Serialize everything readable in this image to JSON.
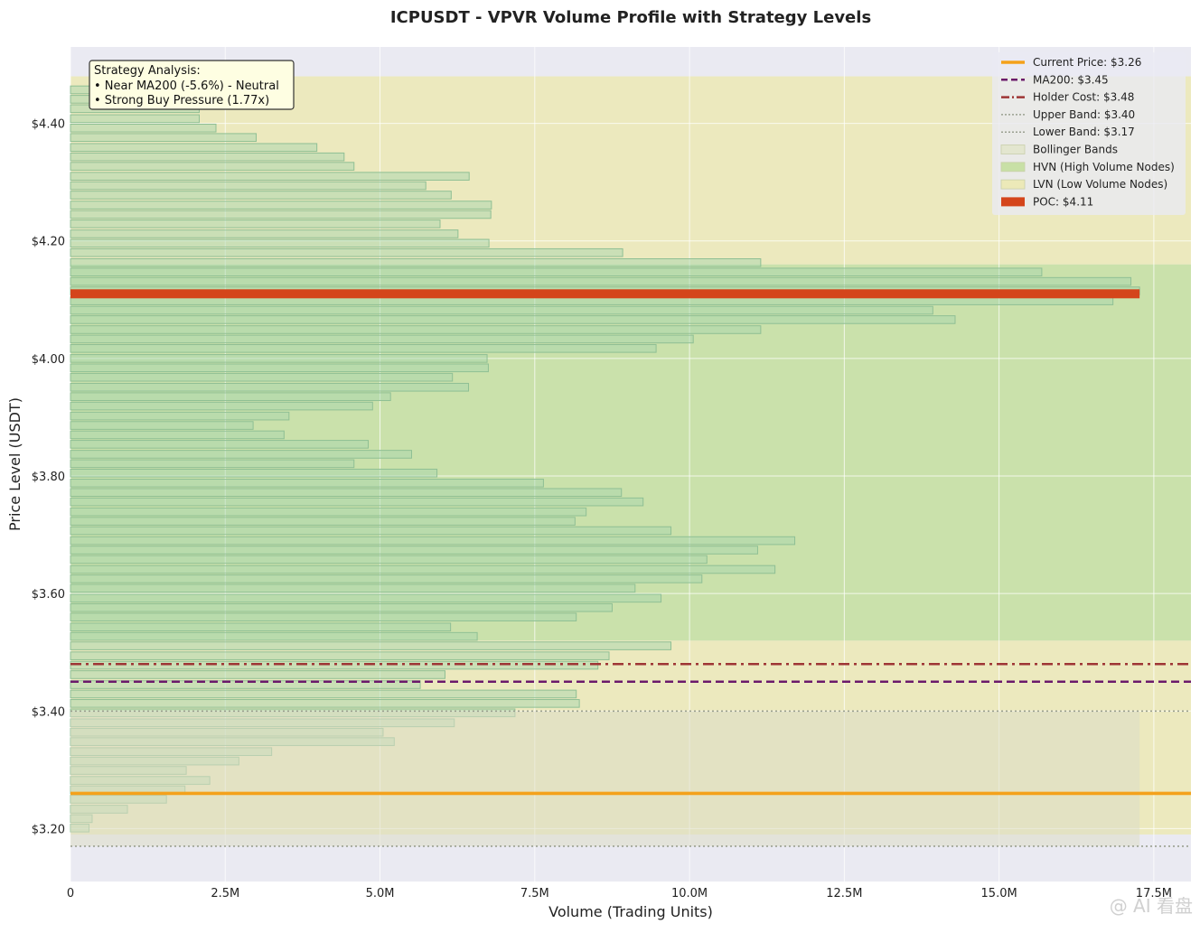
{
  "chart_data": {
    "type": "bar",
    "orientation": "horizontal",
    "title": "ICPUSDT - VPVR Volume Profile with Strategy Levels",
    "xlabel": "Volume (Trading Units)",
    "ylabel": "Price Level (USDT)",
    "xlim": [
      0,
      18100000
    ],
    "ylim": [
      3.11,
      4.53
    ],
    "x_ticks": [
      {
        "value": 0,
        "label": "0"
      },
      {
        "value": 2500000,
        "label": "2.5M"
      },
      {
        "value": 5000000,
        "label": "5.0M"
      },
      {
        "value": 7500000,
        "label": "7.5M"
      },
      {
        "value": 10000000,
        "label": "10.0M"
      },
      {
        "value": 12500000,
        "label": "12.5M"
      },
      {
        "value": 15000000,
        "label": "15.0M"
      },
      {
        "value": 17500000,
        "label": "17.5M"
      }
    ],
    "y_ticks": [
      {
        "value": 3.2,
        "label": "$3.20"
      },
      {
        "value": 3.4,
        "label": "$3.40"
      },
      {
        "value": 3.6,
        "label": "$3.60"
      },
      {
        "value": 3.8,
        "label": "$3.80"
      },
      {
        "value": 4.0,
        "label": "$4.00"
      },
      {
        "value": 4.2,
        "label": "$4.20"
      },
      {
        "value": 4.4,
        "label": "$4.40"
      }
    ],
    "grid": true,
    "bin_height": 0.0163,
    "bins": [
      {
        "price": 3.201,
        "volume": 300000
      },
      {
        "price": 3.217,
        "volume": 350000
      },
      {
        "price": 3.233,
        "volume": 920000
      },
      {
        "price": 3.25,
        "volume": 1550000
      },
      {
        "price": 3.266,
        "volume": 1850000
      },
      {
        "price": 3.282,
        "volume": 2250000
      },
      {
        "price": 3.299,
        "volume": 1870000
      },
      {
        "price": 3.315,
        "volume": 2720000
      },
      {
        "price": 3.331,
        "volume": 3250000
      },
      {
        "price": 3.348,
        "volume": 5230000
      },
      {
        "price": 3.364,
        "volume": 5050000
      },
      {
        "price": 3.38,
        "volume": 6200000
      },
      {
        "price": 3.397,
        "volume": 7180000
      },
      {
        "price": 3.413,
        "volume": 8220000
      },
      {
        "price": 3.429,
        "volume": 8170000
      },
      {
        "price": 3.445,
        "volume": 5650000
      },
      {
        "price": 3.462,
        "volume": 6050000
      },
      {
        "price": 3.478,
        "volume": 8520000
      },
      {
        "price": 3.494,
        "volume": 8700000
      },
      {
        "price": 3.511,
        "volume": 9700000
      },
      {
        "price": 3.527,
        "volume": 6570000
      },
      {
        "price": 3.543,
        "volume": 6140000
      },
      {
        "price": 3.56,
        "volume": 8170000
      },
      {
        "price": 3.576,
        "volume": 8750000
      },
      {
        "price": 3.592,
        "volume": 9540000
      },
      {
        "price": 3.609,
        "volume": 9120000
      },
      {
        "price": 3.625,
        "volume": 10200000
      },
      {
        "price": 3.641,
        "volume": 11380000
      },
      {
        "price": 3.658,
        "volume": 10280000
      },
      {
        "price": 3.674,
        "volume": 11100000
      },
      {
        "price": 3.69,
        "volume": 11700000
      },
      {
        "price": 3.707,
        "volume": 9700000
      },
      {
        "price": 3.723,
        "volume": 8150000
      },
      {
        "price": 3.739,
        "volume": 8330000
      },
      {
        "price": 3.756,
        "volume": 9250000
      },
      {
        "price": 3.772,
        "volume": 8900000
      },
      {
        "price": 3.788,
        "volume": 7640000
      },
      {
        "price": 3.805,
        "volume": 5920000
      },
      {
        "price": 3.821,
        "volume": 4580000
      },
      {
        "price": 3.837,
        "volume": 5510000
      },
      {
        "price": 3.854,
        "volume": 4810000
      },
      {
        "price": 3.87,
        "volume": 3450000
      },
      {
        "price": 3.886,
        "volume": 2950000
      },
      {
        "price": 3.902,
        "volume": 3530000
      },
      {
        "price": 3.919,
        "volume": 4880000
      },
      {
        "price": 3.935,
        "volume": 5170000
      },
      {
        "price": 3.951,
        "volume": 6430000
      },
      {
        "price": 3.968,
        "volume": 6170000
      },
      {
        "price": 3.984,
        "volume": 6750000
      },
      {
        "price": 4.0,
        "volume": 6730000
      },
      {
        "price": 4.017,
        "volume": 9460000
      },
      {
        "price": 4.033,
        "volume": 10060000
      },
      {
        "price": 4.049,
        "volume": 11150000
      },
      {
        "price": 4.066,
        "volume": 14290000
      },
      {
        "price": 4.082,
        "volume": 13930000
      },
      {
        "price": 4.098,
        "volume": 16840000
      },
      {
        "price": 4.115,
        "volume": 17270000
      },
      {
        "price": 4.131,
        "volume": 17130000
      },
      {
        "price": 4.147,
        "volume": 15690000
      },
      {
        "price": 4.163,
        "volume": 11150000
      },
      {
        "price": 4.18,
        "volume": 8920000
      },
      {
        "price": 4.196,
        "volume": 6760000
      },
      {
        "price": 4.212,
        "volume": 6260000
      },
      {
        "price": 4.229,
        "volume": 5970000
      },
      {
        "price": 4.245,
        "volume": 6790000
      },
      {
        "price": 4.261,
        "volume": 6800000
      },
      {
        "price": 4.278,
        "volume": 6150000
      },
      {
        "price": 4.294,
        "volume": 5740000
      },
      {
        "price": 4.31,
        "volume": 6440000
      },
      {
        "price": 4.327,
        "volume": 4580000
      },
      {
        "price": 4.343,
        "volume": 4420000
      },
      {
        "price": 4.359,
        "volume": 3980000
      },
      {
        "price": 4.376,
        "volume": 3000000
      },
      {
        "price": 4.392,
        "volume": 2350000
      },
      {
        "price": 4.408,
        "volume": 2080000
      },
      {
        "price": 4.425,
        "volume": 2080000
      },
      {
        "price": 4.441,
        "volume": 1950000
      },
      {
        "price": 4.457,
        "volume": 1570000
      },
      {
        "price": 4.473,
        "volume": 0
      }
    ],
    "zones": {
      "hvn": {
        "from": 3.52,
        "to": 4.16
      },
      "lvn": [
        {
          "from": 3.19,
          "to": 3.52
        },
        {
          "from": 4.16,
          "to": 4.48
        }
      ],
      "bollinger": {
        "from": 3.17,
        "to": 3.4,
        "max_volume": 17270000
      }
    },
    "levels": {
      "current_price": 3.26,
      "ma200": 3.45,
      "holder_cost": 3.48,
      "upper_band": 3.4,
      "lower_band": 3.17,
      "poc": 4.11,
      "poc_volume": 17270000
    },
    "colors": {
      "plot_bg": "#eaeaf2",
      "bar_fill": "#a8d5ae",
      "bar_edge": "#8fbf94",
      "hvn": "#c8e0a6",
      "lvn": "#ece9b8",
      "bollinger": "#dcdcc6",
      "current_price": "#f4a11b",
      "ma200": "#6b1a6b",
      "holder_cost": "#9e3535",
      "band": "#9aa090",
      "poc": "#d4451b"
    },
    "legend": {
      "position": "top-right",
      "entries": [
        {
          "label": "Current Price: $3.26",
          "style": "line-solid",
          "color": "#f4a11b"
        },
        {
          "label": "MA200: $3.45",
          "style": "line-dashed",
          "color": "#6b1a6b"
        },
        {
          "label": "Holder Cost: $3.48",
          "style": "line-dashdot",
          "color": "#9e3535"
        },
        {
          "label": "Upper Band: $3.40",
          "style": "line-dotted",
          "color": "#9aa090"
        },
        {
          "label": "Lower Band: $3.17",
          "style": "line-dotted",
          "color": "#9aa090"
        },
        {
          "label": "Bollinger Bands",
          "style": "patch",
          "color": "#e3e6cf"
        },
        {
          "label": "HVN (High Volume Nodes)",
          "style": "patch",
          "color": "#c8e0a6"
        },
        {
          "label": "LVN (Low Volume Nodes)",
          "style": "patch",
          "color": "#ece9b8"
        },
        {
          "label": "POC: $4.11",
          "style": "patch-solid",
          "color": "#d4451b"
        }
      ]
    },
    "annotation": {
      "lines": [
        "Strategy Analysis:",
        "• Near MA200 (-5.6%) - Neutral",
        "• Strong Buy Pressure (1.77x)"
      ]
    }
  },
  "watermark": "@ AI 看盘"
}
